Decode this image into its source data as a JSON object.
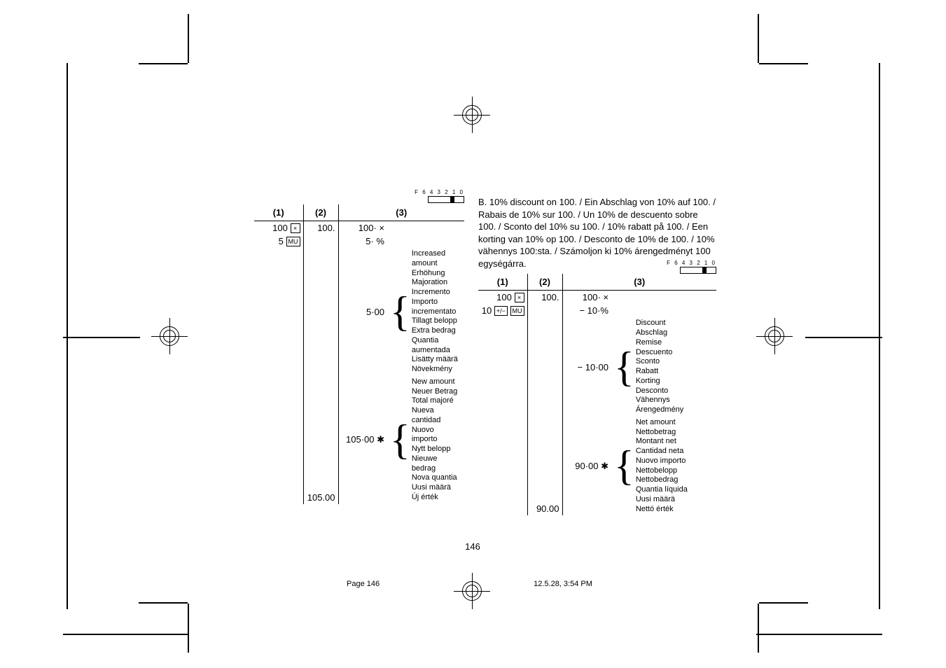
{
  "dial_label": "F 6 4 3 2 1 0",
  "section_b_intro": "B. 10% discount on 100. / Ein Abschlag von 10% auf 100. / Rabais de 10% sur 100. / Un 10% de descuento sobre 100. / Sconto del 10% su 100. / 10% rabatt på 100. / Een korting van 10% op 100. / Desconto de 10% de 100. / 10% vähennys 100:sta. / Számoljon ki 10% árengedményt 100 egységárra.",
  "headers": {
    "c1": "(1)",
    "c2": "(2)",
    "c3": "(3)"
  },
  "left": {
    "r1": {
      "input": "100",
      "key": "×",
      "disp": "100.",
      "print": "100· ×"
    },
    "r2": {
      "input": "5",
      "key": "MU",
      "print": "5· %"
    },
    "increased_label_lines": [
      "Increased amount",
      "Erhöhung",
      "Majoration",
      "Incremento",
      "Importo incrementato",
      "Tillagt belopp",
      "Extra bedrag",
      "Quantia aumentada",
      "Lisätty määrä",
      "Növekmény"
    ],
    "inc_val": "5·00",
    "new_label_lines": [
      "New amount",
      "Neuer Betrag",
      "Total majoré",
      "Nueva cantidad",
      "Nuovo importo",
      "Nytt belopp",
      "Nieuwe bedrag",
      "Nova quantia",
      "Uusi määrä",
      "Új érték"
    ],
    "new_val": "105·00 ✱",
    "final_disp": "105.00"
  },
  "right": {
    "r1": {
      "input": "100",
      "key": "×",
      "disp": "100.",
      "print": "100· ×"
    },
    "r2": {
      "input": "10",
      "key1": "+/−",
      "key2": "MU",
      "print": "−    10·%"
    },
    "disc_label_lines": [
      "Discount",
      "Abschlag",
      "Remise",
      "Descuento",
      "Sconto",
      "Rabatt",
      "Korting",
      "Desconto",
      "Vähennys",
      "Árengedmény"
    ],
    "disc_val": "−  10·00",
    "net_label_lines": [
      "Net amount",
      "Nettobetrag",
      "Montant net",
      "Cantidad neta",
      "Nuovo importo",
      "Nettobelopp",
      "Nettobedrag",
      "Quantia líquida",
      "Uusi määrä",
      "Nettó érték"
    ],
    "net_val": "90·00 ✱",
    "final_disp": "90.00"
  },
  "page_number": "146",
  "footer_left": "Page 146",
  "footer_right": "12.5.28, 3:54 PM"
}
